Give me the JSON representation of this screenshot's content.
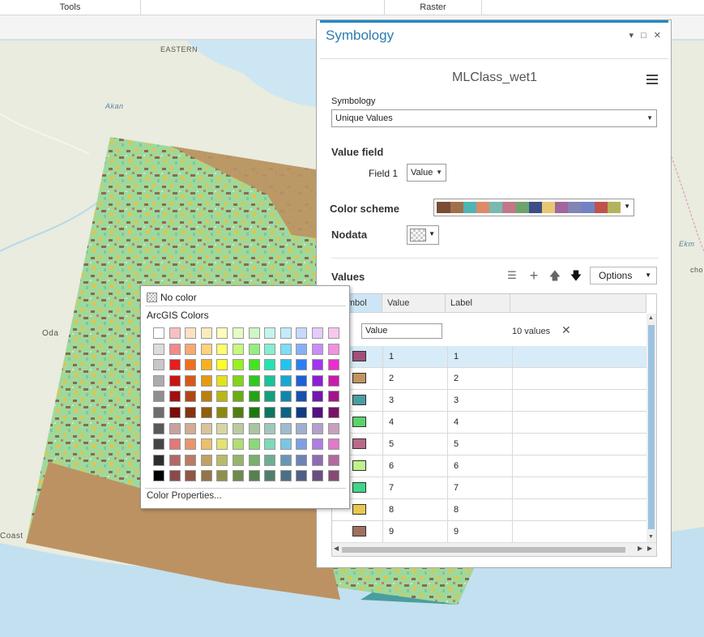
{
  "ribbon": {
    "tools_label": "Tools",
    "raster_label": "Raster"
  },
  "map": {
    "places": [
      "EASTERN",
      "Akan",
      "Oda",
      "Coast",
      "Ekm",
      "cho"
    ]
  },
  "pane": {
    "title": "Symbology",
    "controls": {
      "pin": "▾",
      "restore": "□",
      "close": "✕"
    },
    "layer_name": "MLClass_wet1",
    "symbology_label": "Symbology",
    "symbology_value": "Unique Values",
    "value_field_label": "Value field",
    "field1_label": "Field 1",
    "field1_value": "Value",
    "color_scheme_label": "Color scheme",
    "color_scheme_colors": [
      "#7a4b35",
      "#a26f4d",
      "#4fb4b2",
      "#dd8a69",
      "#7ab9af",
      "#c07a87",
      "#6ea36e",
      "#3b4f86",
      "#e8c773",
      "#a2679a",
      "#8383b4",
      "#7082c3",
      "#c0524d",
      "#b3b35b"
    ],
    "nodata_label": "Nodata",
    "values_label": "Values",
    "options_label": "Options",
    "grid": {
      "headers": [
        "Symbol",
        "Value",
        "Label"
      ],
      "filter_value": "Value",
      "count_text": "10 values",
      "clear_icon": "✕",
      "rows": [
        {
          "value": "1",
          "label": "1",
          "color": "#a0507a"
        },
        {
          "value": "2",
          "label": "2",
          "color": "#c1945f"
        },
        {
          "value": "3",
          "label": "3",
          "color": "#4b9da0"
        },
        {
          "value": "4",
          "label": "4",
          "color": "#5ad46a"
        },
        {
          "value": "5",
          "label": "5",
          "color": "#b96a8c"
        },
        {
          "value": "6",
          "label": "6",
          "color": "#bff38a"
        },
        {
          "value": "7",
          "label": "7",
          "color": "#3fd68a"
        },
        {
          "value": "8",
          "label": "8",
          "color": "#e8c74e"
        },
        {
          "value": "9",
          "label": "9",
          "color": "#a07060"
        }
      ]
    }
  },
  "popup": {
    "no_color_label": "No color",
    "palette_title": "ArcGIS Colors",
    "properties_label": "Color Properties...",
    "palette": [
      [
        "#ffffff",
        "#f7c0c0",
        "#fde1c2",
        "#fdebbd",
        "#fdfdbb",
        "#e6fbc4",
        "#cdf6c6",
        "#c5f5ea",
        "#c2ecfb",
        "#c6d9fb",
        "#e5cbfa",
        "#f9c6ee"
      ],
      [
        "#dcdcdc",
        "#f28a8a",
        "#f7a974",
        "#fdd27a",
        "#fdfd6e",
        "#c8f77e",
        "#96ee82",
        "#86eed0",
        "#7fdcf7",
        "#87aff7",
        "#c88ef6",
        "#f290e0"
      ],
      [
        "#c7c7c7",
        "#e61e1e",
        "#f06e1e",
        "#f9b21d",
        "#fdfd2b",
        "#9bef1f",
        "#43e51f",
        "#1fe5b1",
        "#1fc5f2",
        "#2b7ff2",
        "#a335f1",
        "#ea2ecd"
      ],
      [
        "#acacac",
        "#c81414",
        "#d8581a",
        "#e69a14",
        "#e2e21b",
        "#83d41a",
        "#2fc91a",
        "#16c59a",
        "#17a6d6",
        "#1c61d6",
        "#8b1fd6",
        "#c81cae"
      ],
      [
        "#8f8f8f",
        "#a11010",
        "#b24514",
        "#bd7d10",
        "#b7b716",
        "#6aac14",
        "#25a313",
        "#11a07c",
        "#1285ad",
        "#1650ad",
        "#7017ad",
        "#a1168d"
      ],
      [
        "#6e6e6e",
        "#7a0c0c",
        "#86340f",
        "#8f5f0c",
        "#8a8a10",
        "#507f0f",
        "#1b7a0e",
        "#0d775d",
        "#0d6382",
        "#103c82",
        "#540f82",
        "#7a1069"
      ],
      [
        "#595959",
        "#c9a1a1",
        "#d2ac93",
        "#d8c39b",
        "#d6d6a2",
        "#bccb9d",
        "#a7c79f",
        "#9fc8bc",
        "#9cbdcf",
        "#9eb0cf",
        "#b59fcd",
        "#c99fbe"
      ],
      [
        "#454545",
        "#e07979",
        "#e8956d",
        "#ecbf6d",
        "#e3e36e",
        "#b2dc74",
        "#8cd879",
        "#7ed9b8",
        "#79c6e3",
        "#7e9fe3",
        "#b07de1",
        "#e07ac9"
      ],
      [
        "#2e2e2e",
        "#b26868",
        "#bb7c63",
        "#c0a165",
        "#baba6a",
        "#95b56a",
        "#7aaf6c",
        "#6cae95",
        "#6897b5",
        "#6c84b5",
        "#8e6cb3",
        "#b2699f"
      ],
      [
        "#000000",
        "#8a4a4a",
        "#915644",
        "#94744a",
        "#8f8f4d",
        "#6e8a4d",
        "#587f4e",
        "#4e7f6c",
        "#4b6f85",
        "#4e5f85",
        "#694e83",
        "#854b75"
      ]
    ]
  }
}
